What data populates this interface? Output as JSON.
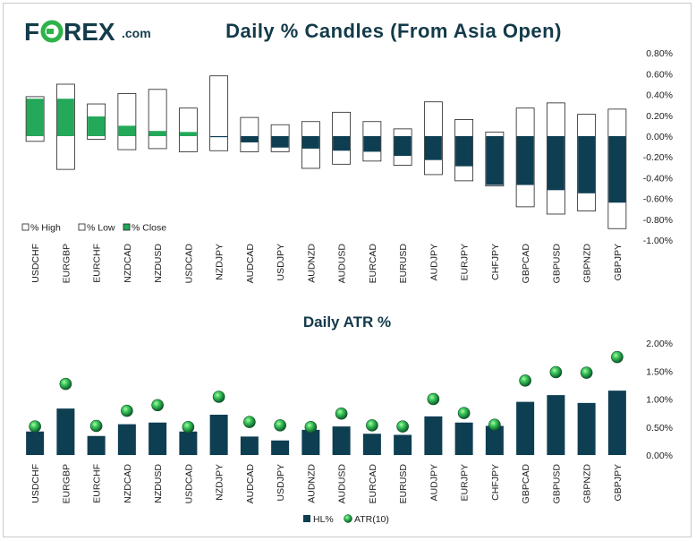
{
  "brand": {
    "logo_text": "FOREX",
    "logo_suffix": ".com",
    "colors": {
      "dark": "#143c4b",
      "green": "#2db34a"
    }
  },
  "colors": {
    "navy": "#0e3e52",
    "green": "#24a859",
    "outline": "#202020",
    "axis_text": "#202020",
    "title": "#133a4a"
  },
  "chart_data": [
    {
      "type": "candlestick",
      "title": "Daily % Candles (From Asia Open)",
      "categories": [
        "USDCHF",
        "EURGBP",
        "EURCHF",
        "NZDCAD",
        "NZDUSD",
        "USDCAD",
        "NZDJPY",
        "AUDCAD",
        "USDJPY",
        "AUDNZD",
        "AUDUSD",
        "EURCAD",
        "EURUSD",
        "AUDJPY",
        "EURJPY",
        "CHFJPY",
        "GBPCAD",
        "GBPUSD",
        "GBPNZD",
        "GBPJPY"
      ],
      "series": [
        {
          "name": "% High",
          "values": [
            0.38,
            0.5,
            0.31,
            0.41,
            0.45,
            0.27,
            0.58,
            0.18,
            0.11,
            0.14,
            0.23,
            0.14,
            0.07,
            0.33,
            0.16,
            0.04,
            0.27,
            0.32,
            0.21,
            0.26
          ]
        },
        {
          "name": "% Low",
          "values": [
            -0.05,
            -0.32,
            -0.03,
            -0.13,
            -0.12,
            -0.15,
            -0.14,
            -0.15,
            -0.15,
            -0.31,
            -0.27,
            -0.24,
            -0.28,
            -0.37,
            -0.43,
            -0.48,
            -0.68,
            -0.75,
            -0.72,
            -0.89
          ]
        },
        {
          "name": "% Close",
          "values": [
            0.36,
            0.36,
            0.19,
            0.1,
            0.05,
            0.04,
            -0.01,
            -0.06,
            -0.11,
            -0.12,
            -0.14,
            -0.15,
            -0.19,
            -0.23,
            -0.29,
            -0.47,
            -0.47,
            -0.52,
            -0.55,
            -0.64
          ]
        }
      ],
      "ylim": [
        -1.0,
        0.8
      ],
      "yticks": [
        "0.80%",
        "0.60%",
        "0.40%",
        "0.20%",
        "0.00%",
        "-0.20%",
        "-0.40%",
        "-0.60%",
        "-0.80%",
        "-1.00%"
      ],
      "ytick_values": [
        0.8,
        0.6,
        0.4,
        0.2,
        0.0,
        -0.2,
        -0.4,
        -0.6,
        -0.8,
        -1.0
      ],
      "legend": [
        "% High",
        "% Low",
        "% Close"
      ],
      "legend_position": "bottom-left"
    },
    {
      "type": "bar",
      "title": "Daily ATR %",
      "categories": [
        "USDCHF",
        "EURGBP",
        "EURCHF",
        "NZDCAD",
        "NZDUSD",
        "USDCAD",
        "NZDJPY",
        "AUDCAD",
        "USDJPY",
        "AUDNZD",
        "AUDUSD",
        "EURCAD",
        "EURUSD",
        "AUDJPY",
        "EURJPY",
        "CHFJPY",
        "GBPCAD",
        "GBPUSD",
        "GBPNZD",
        "GBPJPY"
      ],
      "series": [
        {
          "name": "HL%",
          "values": [
            0.42,
            0.83,
            0.34,
            0.55,
            0.58,
            0.42,
            0.72,
            0.33,
            0.26,
            0.45,
            0.51,
            0.38,
            0.36,
            0.69,
            0.58,
            0.52,
            0.95,
            1.07,
            0.93,
            1.15
          ]
        },
        {
          "name": "ATR(10)",
          "values": [
            0.51,
            1.27,
            0.52,
            0.79,
            0.89,
            0.5,
            1.04,
            0.59,
            0.53,
            0.5,
            0.74,
            0.53,
            0.51,
            1.0,
            0.75,
            0.54,
            1.33,
            1.48,
            1.47,
            1.75
          ]
        }
      ],
      "ylim": [
        0,
        2.0
      ],
      "yticks": [
        "2.00%",
        "1.50%",
        "1.00%",
        "0.50%",
        "0.00%"
      ],
      "ytick_values": [
        2.0,
        1.5,
        1.0,
        0.5,
        0.0
      ],
      "legend": [
        "HL%",
        "ATR(10)"
      ],
      "legend_position": "bottom-center"
    }
  ]
}
